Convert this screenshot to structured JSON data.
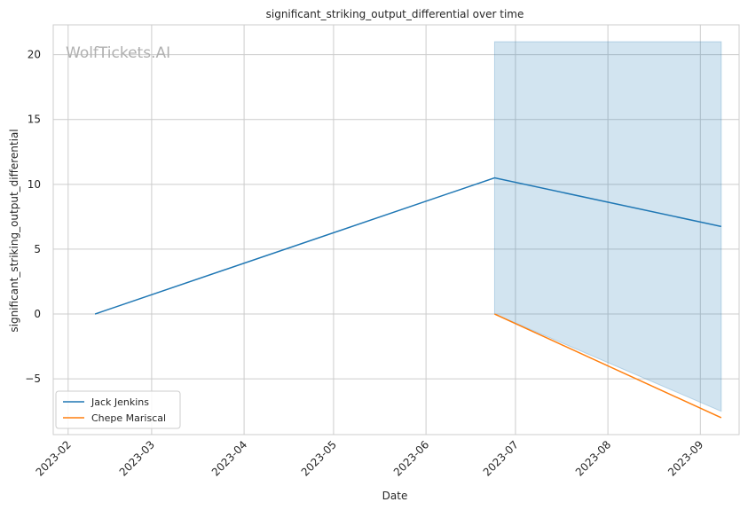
{
  "chart_data": {
    "type": "line",
    "title": "significant_striking_output_differential over time",
    "xlabel": "Date",
    "ylabel": "significant_striking_output_differential",
    "watermark": "WolfTickets.AI",
    "x_ticks": [
      "2023-02",
      "2023-03",
      "2023-04",
      "2023-05",
      "2023-06",
      "2023-07",
      "2023-08",
      "2023-09"
    ],
    "y_ticks": [
      -5,
      0,
      5,
      10,
      15,
      20
    ],
    "xlim": [
      "2023-01-27",
      "2023-09-14"
    ],
    "ylim": [
      -9.3,
      22.3
    ],
    "grid": true,
    "legend_position": "lower-left",
    "series": [
      {
        "name": "Jack Jenkins",
        "color": "#1f77b4",
        "x": [
          "2023-02-10",
          "2023-06-24",
          "2023-09-08"
        ],
        "y": [
          0,
          10.5,
          6.75
        ]
      },
      {
        "name": "Chepe Mariscal",
        "color": "#ff7f0e",
        "x": [
          "2023-06-24",
          "2023-09-08"
        ],
        "y": [
          0,
          -8
        ]
      }
    ],
    "shaded_band": {
      "color": "#1f77b4",
      "opacity": 0.2,
      "x": [
        "2023-06-24",
        "2023-09-08"
      ],
      "upper": [
        21,
        21
      ],
      "lower": [
        0,
        -7.5
      ]
    }
  }
}
